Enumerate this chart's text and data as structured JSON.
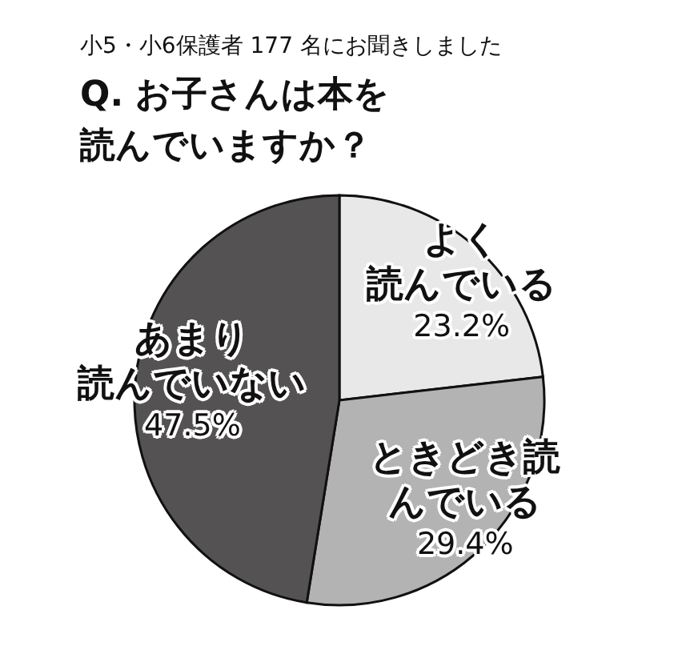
{
  "chart_data": {
    "type": "pie",
    "subtitle": "小5・小6保護者 177 名にお聞きしました",
    "title": "Q. お子さんは本を読んでいますか？",
    "categories": [
      "よく読んでいる",
      "ときどき読んでいる",
      "あまり読んでいない"
    ],
    "values": [
      23.2,
      29.4,
      47.5
    ],
    "colors": [
      "#e8e8e8",
      "#b3b3b3",
      "#555253"
    ],
    "value_labels": [
      "23.2%",
      "29.4%",
      "47.5%"
    ],
    "legend": false
  }
}
